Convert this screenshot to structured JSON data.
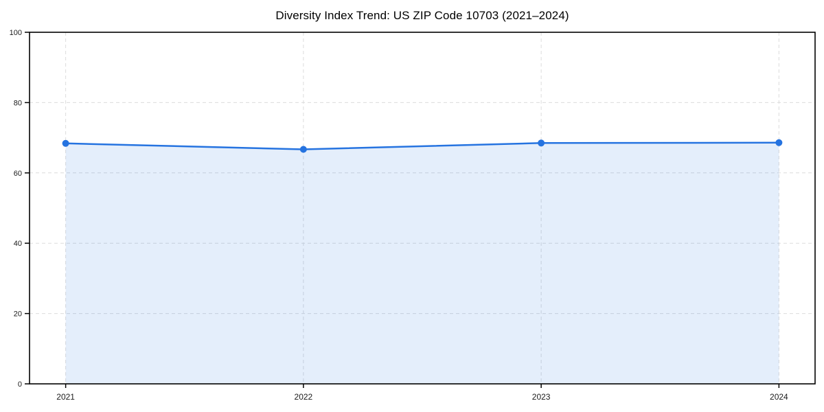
{
  "figure": {
    "background": "#ffffff"
  },
  "chart_data": {
    "type": "line",
    "title": "Diversity Index Trend: US ZIP Code 10703 (2021–2024)",
    "categories": [
      "2021",
      "2022",
      "2023",
      "2024"
    ],
    "series": [
      {
        "name": "Diversity Index",
        "values": [
          68.4,
          66.7,
          68.5,
          68.6
        ]
      }
    ],
    "xlabel": "",
    "ylabel": "",
    "ylim": [
      0,
      100
    ],
    "yticks": [
      0,
      20,
      40,
      60,
      80,
      100
    ],
    "grid": true,
    "grid_style": "dashed",
    "legend_position": "none",
    "area_fill": true,
    "marker": "circle",
    "colors": {
      "line": "#2573e0",
      "marker": "#2573e0",
      "area": "#2573e0",
      "area_opacity": 0.12,
      "grid": "#dcdcdc",
      "axis": "#000000",
      "tick_label": "#1a1a1a",
      "title": "#000000"
    }
  }
}
